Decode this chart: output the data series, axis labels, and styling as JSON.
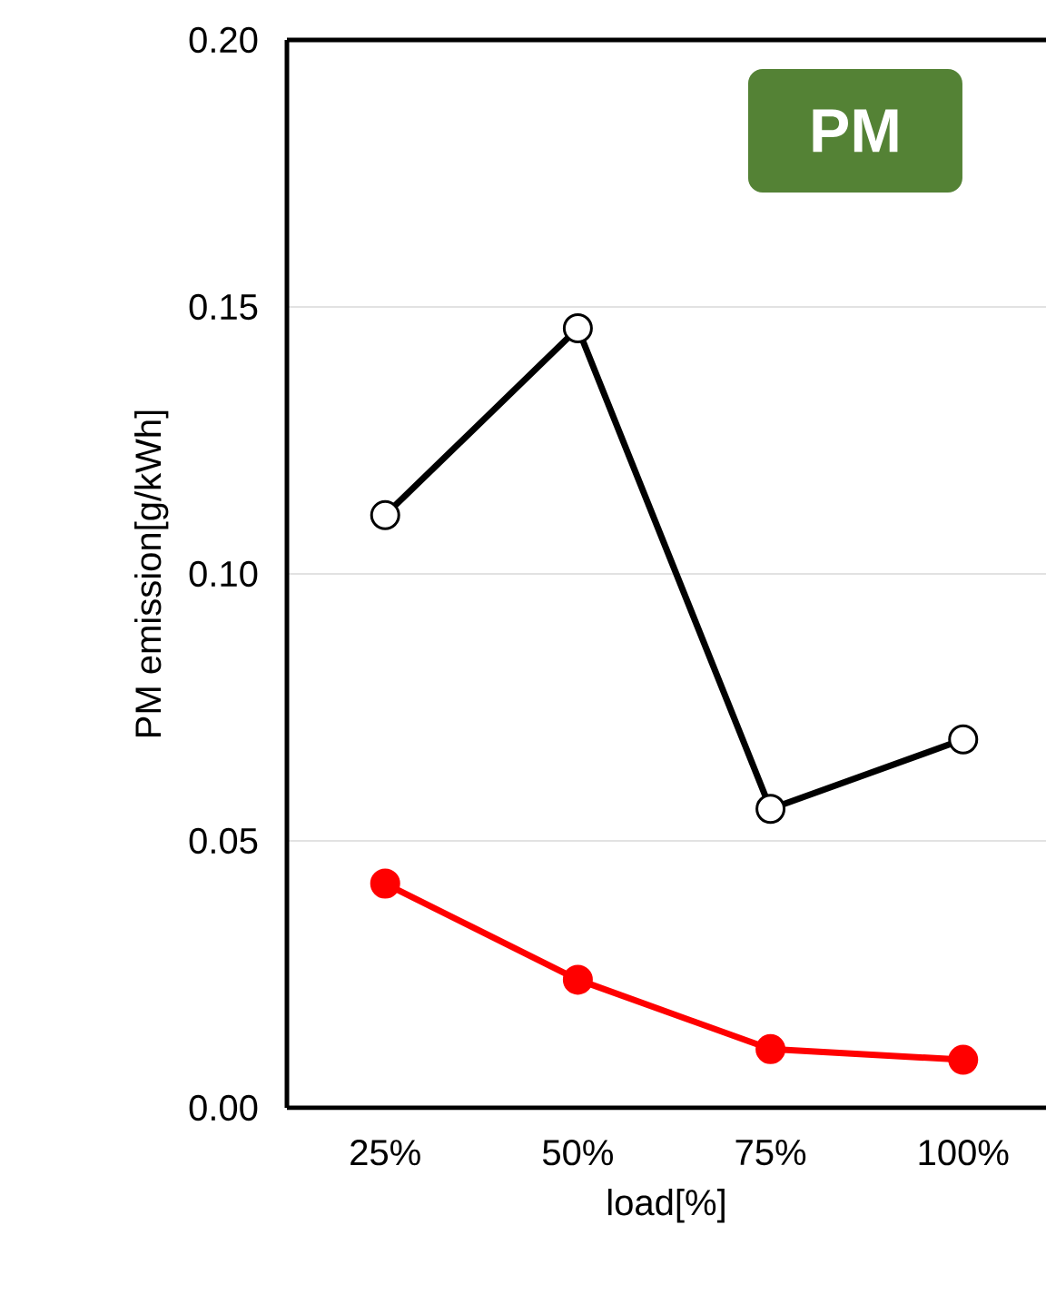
{
  "chart_data": {
    "type": "line",
    "ylabel": "PM emission[g/kWh]",
    "xlabel": "load[%]",
    "categories": [
      "25%",
      "50%",
      "75%",
      "100%"
    ],
    "series": [
      {
        "color": "#000000",
        "values": [
          0.111,
          0.146,
          0.056,
          0.069
        ]
      },
      {
        "color": "#ff0000",
        "values": [
          0.042,
          0.024,
          0.011,
          0.009
        ]
      }
    ],
    "ylim": [
      0,
      0.2
    ],
    "yticks": [
      {
        "value": 0,
        "label": "0.00"
      },
      {
        "value": 0.05,
        "label": "0.05"
      },
      {
        "value": 0.1,
        "label": "0.10"
      },
      {
        "value": 0.15,
        "label": "0.15"
      },
      {
        "value": 0.2,
        "label": "0.20"
      }
    ],
    "grid": "y",
    "marker": "circle",
    "line_style": "solid",
    "annotations": [
      "PM"
    ]
  }
}
